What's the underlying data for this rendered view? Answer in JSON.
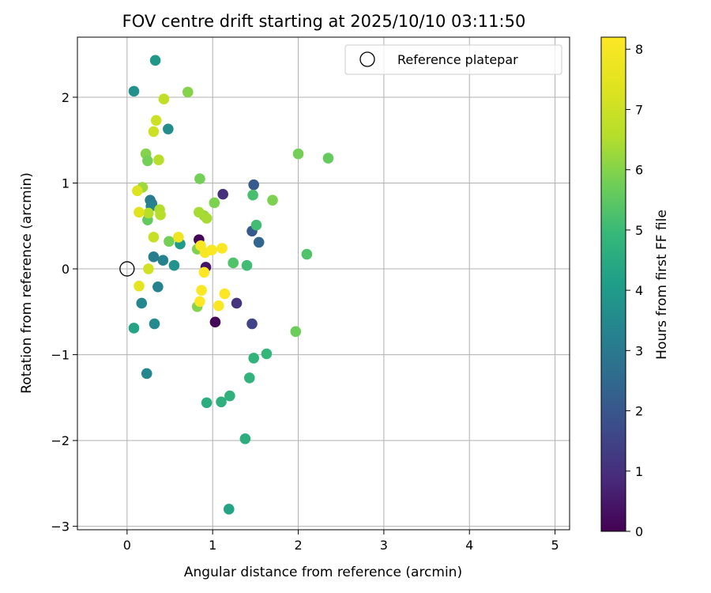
{
  "chart_data": {
    "type": "scatter",
    "title": "FOV centre drift starting at 2025/10/10 03:11:50",
    "xlabel": "Angular distance from reference (arcmin)",
    "ylabel": "Rotation from reference (arcmin)",
    "xlim": [
      -0.58,
      5.17
    ],
    "ylim": [
      -3.04,
      2.7
    ],
    "xticks": [
      0,
      1,
      2,
      3,
      4,
      5
    ],
    "yticks": [
      -3,
      -2,
      -1,
      0,
      1,
      2
    ],
    "xtick_labels": [
      "0",
      "1",
      "2",
      "3",
      "4",
      "5"
    ],
    "ytick_labels": [
      "−3",
      "−2",
      "−1",
      "0",
      "1",
      "2"
    ],
    "grid": true,
    "legend": {
      "position": "top-right",
      "entries": [
        {
          "label": "Reference platepar",
          "marker": "open-circle",
          "x": 0,
          "y": 0
        }
      ]
    },
    "colorbar": {
      "label": "Hours from first FF file",
      "colormap": "viridis",
      "range": [
        0,
        8.2
      ],
      "ticks": [
        0,
        1,
        2,
        3,
        4,
        5,
        6,
        7,
        8
      ],
      "tick_labels": [
        "0",
        "1",
        "2",
        "3",
        "4",
        "5",
        "6",
        "7",
        "8"
      ]
    },
    "points": [
      {
        "x": 0.84,
        "y": 0.34,
        "h": 0.1
      },
      {
        "x": 1.03,
        "y": -0.62,
        "h": 0.1
      },
      {
        "x": 0.92,
        "y": 0.02,
        "h": 0.4
      },
      {
        "x": 1.12,
        "y": 0.87,
        "h": 1.0
      },
      {
        "x": 1.28,
        "y": -0.4,
        "h": 1.1
      },
      {
        "x": 1.46,
        "y": -0.64,
        "h": 1.5
      },
      {
        "x": 1.46,
        "y": 0.44,
        "h": 2.1
      },
      {
        "x": 1.48,
        "y": 0.98,
        "h": 2.1
      },
      {
        "x": 1.54,
        "y": 0.31,
        "h": 2.4
      },
      {
        "x": 0.27,
        "y": 0.8,
        "h": 3.1
      },
      {
        "x": 0.29,
        "y": 0.76,
        "h": 3.0
      },
      {
        "x": 0.28,
        "y": 0.73,
        "h": 3.3
      },
      {
        "x": 0.31,
        "y": 0.14,
        "h": 3.2
      },
      {
        "x": 0.42,
        "y": 0.1,
        "h": 3.3
      },
      {
        "x": 0.36,
        "y": -0.21,
        "h": 3.3
      },
      {
        "x": 0.17,
        "y": -0.4,
        "h": 3.4
      },
      {
        "x": 0.23,
        "y": -1.22,
        "h": 3.4
      },
      {
        "x": 0.32,
        "y": -0.64,
        "h": 3.5
      },
      {
        "x": 0.08,
        "y": 2.07,
        "h": 3.7
      },
      {
        "x": 0.48,
        "y": 1.63,
        "h": 3.6
      },
      {
        "x": 0.33,
        "y": 2.43,
        "h": 3.9
      },
      {
        "x": 0.55,
        "y": 0.04,
        "h": 3.8
      },
      {
        "x": 0.62,
        "y": 0.29,
        "h": 4.0
      },
      {
        "x": 0.08,
        "y": -0.69,
        "h": 4.3
      },
      {
        "x": 1.19,
        "y": -2.8,
        "h": 4.3
      },
      {
        "x": 0.93,
        "y": -1.56,
        "h": 4.6
      },
      {
        "x": 1.1,
        "y": -1.55,
        "h": 4.7
      },
      {
        "x": 1.2,
        "y": -1.48,
        "h": 4.7
      },
      {
        "x": 1.38,
        "y": -1.98,
        "h": 4.6
      },
      {
        "x": 1.43,
        "y": -1.27,
        "h": 4.8
      },
      {
        "x": 1.48,
        "y": -1.04,
        "h": 4.8
      },
      {
        "x": 1.63,
        "y": -0.99,
        "h": 4.9
      },
      {
        "x": 1.4,
        "y": 0.04,
        "h": 5.1
      },
      {
        "x": 1.24,
        "y": 0.07,
        "h": 5.3
      },
      {
        "x": 1.47,
        "y": 0.86,
        "h": 5.2
      },
      {
        "x": 1.51,
        "y": 0.51,
        "h": 5.1
      },
      {
        "x": 2.1,
        "y": 0.17,
        "h": 5.3
      },
      {
        "x": 2.35,
        "y": 1.29,
        "h": 5.6
      },
      {
        "x": 2.0,
        "y": 1.34,
        "h": 5.8
      },
      {
        "x": 1.97,
        "y": -0.73,
        "h": 5.7
      },
      {
        "x": 1.7,
        "y": 0.8,
        "h": 5.9
      },
      {
        "x": 0.71,
        "y": 2.06,
        "h": 6.0
      },
      {
        "x": 0.85,
        "y": 1.05,
        "h": 5.8
      },
      {
        "x": 1.02,
        "y": 0.77,
        "h": 5.9
      },
      {
        "x": 0.22,
        "y": 1.34,
        "h": 6.0
      },
      {
        "x": 0.24,
        "y": 1.26,
        "h": 5.8
      },
      {
        "x": 0.24,
        "y": 0.57,
        "h": 5.6
      },
      {
        "x": 0.49,
        "y": 0.32,
        "h": 5.8
      },
      {
        "x": 0.82,
        "y": 0.23,
        "h": 5.9
      },
      {
        "x": 0.82,
        "y": -0.44,
        "h": 6.0
      },
      {
        "x": 0.9,
        "y": 0.62,
        "h": 6.2
      },
      {
        "x": 0.93,
        "y": 0.59,
        "h": 6.4
      },
      {
        "x": 0.84,
        "y": 0.66,
        "h": 6.4
      },
      {
        "x": 0.18,
        "y": 0.95,
        "h": 6.3
      },
      {
        "x": 0.38,
        "y": 0.69,
        "h": 6.5
      },
      {
        "x": 0.39,
        "y": 0.63,
        "h": 6.6
      },
      {
        "x": 0.25,
        "y": 0.65,
        "h": 6.6
      },
      {
        "x": 0.43,
        "y": 1.98,
        "h": 6.8
      },
      {
        "x": 0.34,
        "y": 1.73,
        "h": 7.0
      },
      {
        "x": 0.31,
        "y": 1.6,
        "h": 7.0
      },
      {
        "x": 0.37,
        "y": 1.27,
        "h": 6.6
      },
      {
        "x": 0.31,
        "y": 0.37,
        "h": 6.9
      },
      {
        "x": 0.25,
        "y": 0.0,
        "h": 7.1
      },
      {
        "x": 0.12,
        "y": 0.91,
        "h": 7.3
      },
      {
        "x": 0.14,
        "y": 0.66,
        "h": 7.4
      },
      {
        "x": 0.14,
        "y": -0.2,
        "h": 7.5
      },
      {
        "x": 0.6,
        "y": 0.37,
        "h": 7.8
      },
      {
        "x": 0.86,
        "y": 0.27,
        "h": 8.1
      },
      {
        "x": 0.91,
        "y": 0.19,
        "h": 8.0
      },
      {
        "x": 0.99,
        "y": 0.22,
        "h": 8.1
      },
      {
        "x": 1.11,
        "y": 0.24,
        "h": 8.1
      },
      {
        "x": 0.9,
        "y": -0.04,
        "h": 8.2
      },
      {
        "x": 0.87,
        "y": -0.25,
        "h": 8.1
      },
      {
        "x": 0.85,
        "y": -0.38,
        "h": 8.2
      },
      {
        "x": 1.07,
        "y": -0.43,
        "h": 8.1
      },
      {
        "x": 1.14,
        "y": -0.29,
        "h": 8.2
      }
    ]
  }
}
